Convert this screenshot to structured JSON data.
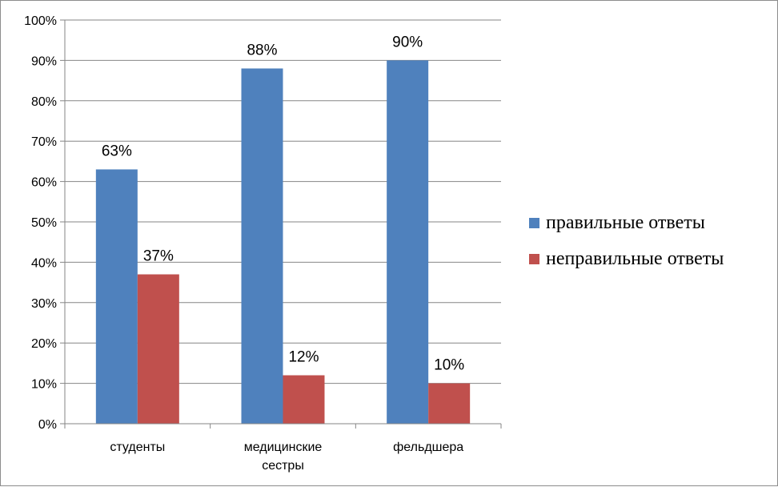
{
  "chart_data": {
    "type": "bar",
    "categories": [
      [
        "студенты"
      ],
      [
        "медицинские",
        "сестры"
      ],
      [
        "фельдшера"
      ]
    ],
    "series": [
      {
        "name": "правильные ответы",
        "color": "#4f81bd",
        "values": [
          63,
          88,
          90
        ],
        "labels": [
          "63%",
          "88%",
          "90%"
        ]
      },
      {
        "name": "неправильные ответы",
        "color": "#c0504d",
        "values": [
          37,
          12,
          10
        ],
        "labels": [
          "37%",
          "12%",
          "10%"
        ]
      }
    ],
    "ylim": [
      0,
      100
    ],
    "yticks": [
      0,
      10,
      20,
      30,
      40,
      50,
      60,
      70,
      80,
      90,
      100
    ],
    "ytick_labels": [
      "0%",
      "10%",
      "20%",
      "30%",
      "40%",
      "50%",
      "60%",
      "70%",
      "80%",
      "90%",
      "100%"
    ],
    "grid": true,
    "legend_position": "right",
    "gridline_color": "#868686"
  }
}
